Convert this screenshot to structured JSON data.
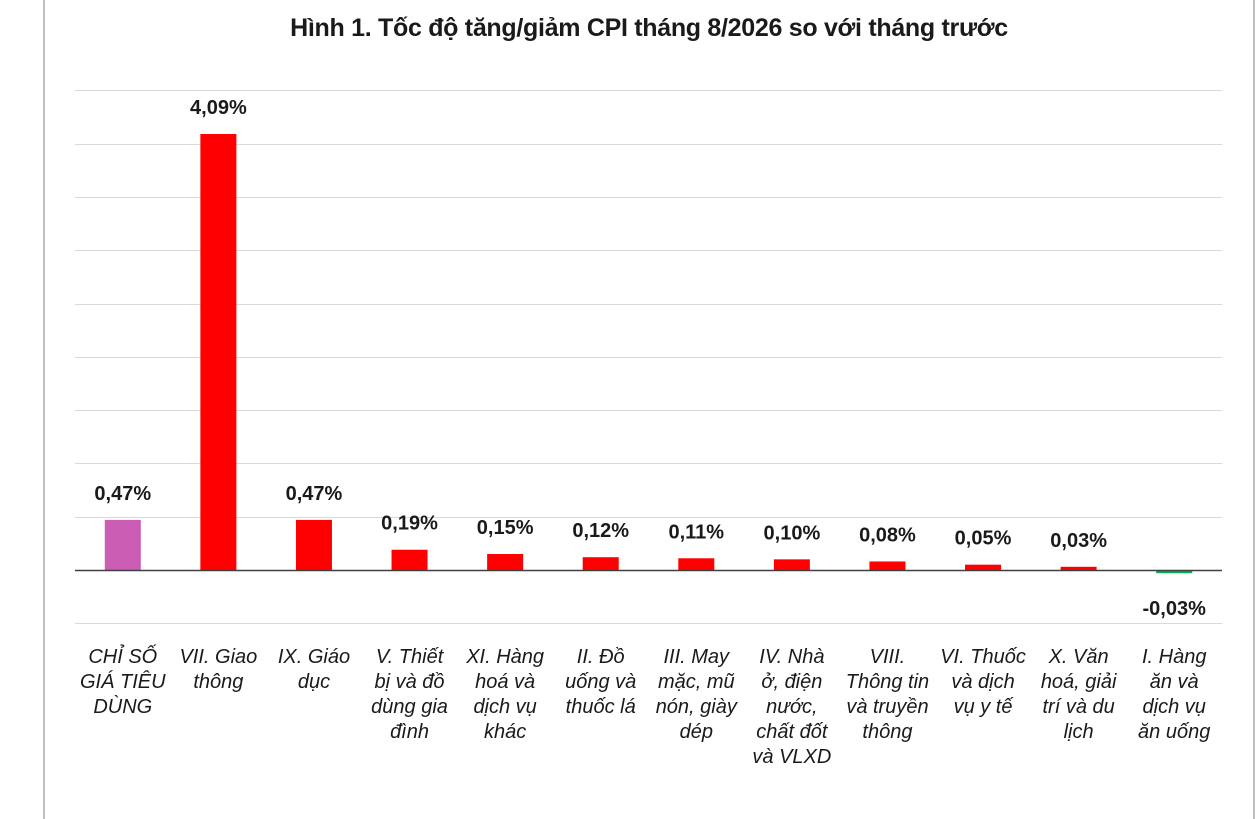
{
  "chart_data": {
    "type": "bar",
    "title": "Hình 1. Tốc độ tăng/giảm CPI tháng 8/2026 so với tháng trước",
    "xlabel": "",
    "ylabel": "",
    "ylim": [
      -0.5,
      4.5
    ],
    "grid": true,
    "categories": [
      "CHỈ SỐ GIÁ TIÊU DÙNG",
      "VII. Giao thông",
      "IX. Giáo dục",
      "V. Thiết bị và đồ dùng gia đình",
      "XI. Hàng hoá và dịch vụ khác",
      "II. Đồ uống và thuốc lá",
      "III. May mặc, mũ nón, giày dép",
      "IV. Nhà ở, điện nước, chất đốt và VLXD",
      "VIII. Thông tin và truyền thông",
      "VI. Thuốc và dịch vụ y tế",
      "X. Văn hoá, giải trí và du lịch",
      "I. Hàng ăn và dịch vụ ăn uống"
    ],
    "category_lines": [
      [
        "CHỈ SỐ",
        "GIÁ TIÊU",
        "DÙNG"
      ],
      [
        "VII. Giao",
        "thông"
      ],
      [
        "IX. Giáo",
        "dục"
      ],
      [
        "V. Thiết",
        "bị và đồ",
        "dùng gia",
        "đình"
      ],
      [
        "XI. Hàng",
        "hoá và",
        "dịch vụ",
        "khác"
      ],
      [
        "II. Đồ",
        "uống và",
        "thuốc lá"
      ],
      [
        "III. May",
        "mặc, mũ",
        "nón, giày",
        "dép"
      ],
      [
        "IV. Nhà",
        "ở, điện",
        "nước,",
        "chất đốt",
        "và VLXD"
      ],
      [
        "VIII.",
        "Thông tin",
        "và truyền",
        "thông"
      ],
      [
        "VI. Thuốc",
        "và dịch",
        "vụ y tế"
      ],
      [
        "X. Văn",
        "hoá, giải",
        "trí và du",
        "lịch"
      ],
      [
        "I. Hàng",
        "ăn và",
        "dịch vụ",
        "ăn uống"
      ]
    ],
    "values": [
      0.47,
      4.09,
      0.47,
      0.19,
      0.15,
      0.12,
      0.11,
      0.1,
      0.08,
      0.05,
      0.03,
      -0.03
    ],
    "data_labels": [
      "0,47%",
      "4,09%",
      "0,47%",
      "0,19%",
      "0,15%",
      "0,12%",
      "0,11%",
      "0,10%",
      "0,08%",
      "0,05%",
      "0,03%",
      "-0,03%"
    ],
    "colors": [
      "#cc5db5",
      "#ff0000",
      "#ff0000",
      "#ff0000",
      "#ff0000",
      "#ff0000",
      "#ff0000",
      "#ff0000",
      "#ff0000",
      "#ff0000",
      "#ff0000",
      "#00b050"
    ]
  }
}
